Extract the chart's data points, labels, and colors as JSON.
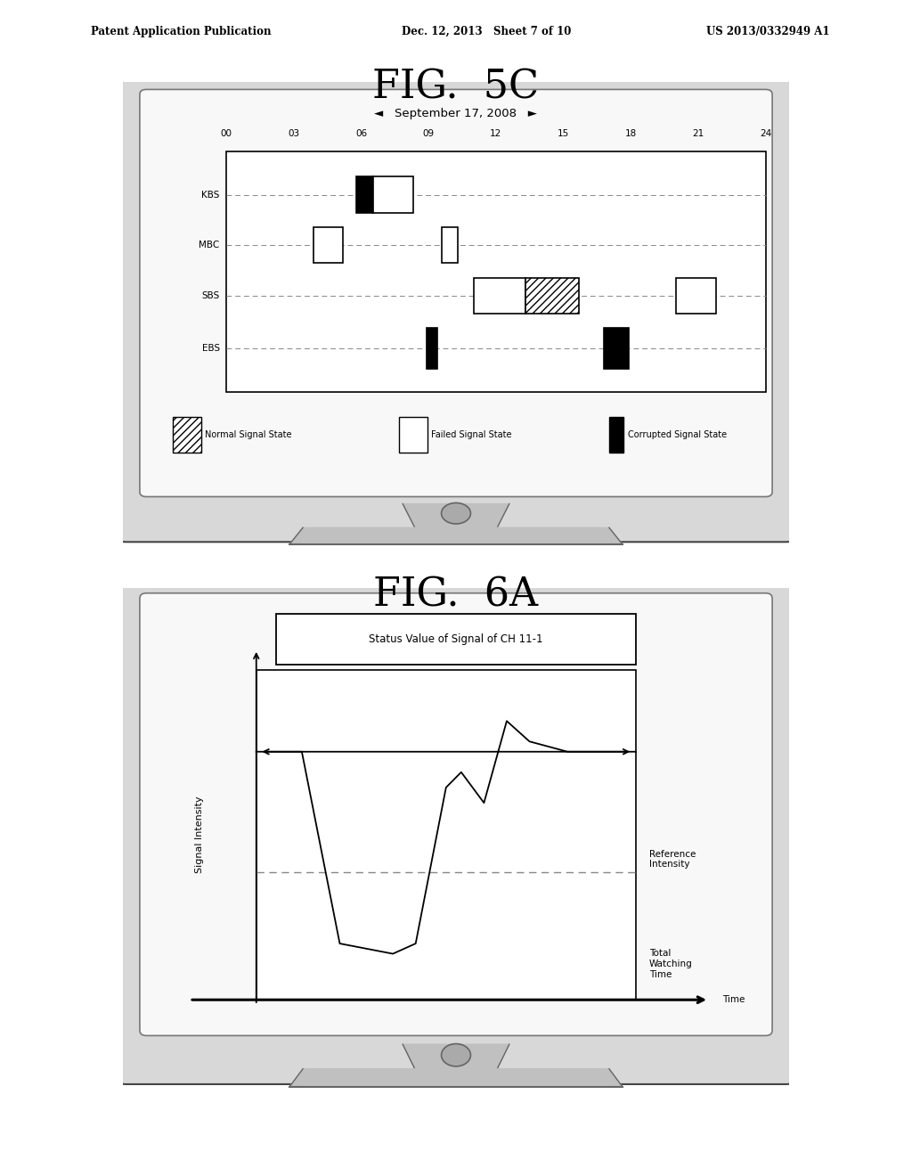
{
  "header_left": "Patent Application Publication",
  "header_mid": "Dec. 12, 2013   Sheet 7 of 10",
  "header_right": "US 2013/0332949 A1",
  "fig1_title": "FIG.  5C",
  "fig2_title": "FIG.  6A",
  "fig1_date": "◄   September 17, 2008   ►",
  "fig1_time_labels": [
    "00",
    "03",
    "06",
    "09",
    "12",
    "15",
    "18",
    "21",
    "24"
  ],
  "fig1_channels": [
    "KBS",
    "MBC",
    "SBS",
    "EBS"
  ],
  "fig1_legend": [
    "Normal Signal State",
    "Failed Signal State",
    "Corrupted Signal State"
  ],
  "fig2_title_box": "Status Value of Signal of CH 11-1",
  "fig2_ylabel": "Signal Intensity",
  "fig2_ref_label": "Reference\nIntensity",
  "fig2_total_label": "Total\nWatching\nTime",
  "fig2_time_label": "Time",
  "bg_color": "#ffffff"
}
